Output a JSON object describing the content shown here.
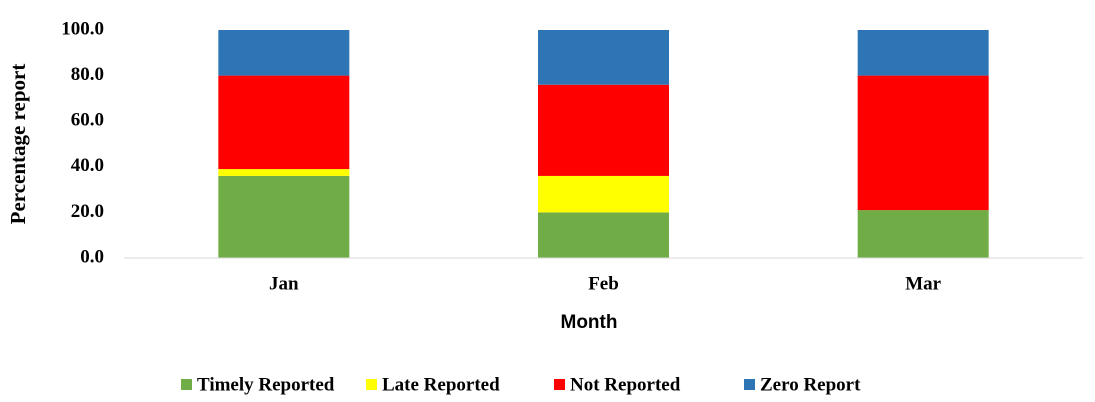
{
  "chart_data": {
    "type": "stacked_bar",
    "categories": [
      "Jan",
      "Feb",
      "Mar"
    ],
    "series": [
      {
        "name": "Timely Reported",
        "color": "#70ad47",
        "values": [
          36,
          20,
          21
        ]
      },
      {
        "name": "Late Reported",
        "color": "#ffff00",
        "values": [
          3,
          16,
          0
        ]
      },
      {
        "name": "Not Reported",
        "color": "#ff0000",
        "values": [
          41,
          40,
          59
        ]
      },
      {
        "name": "Zero Report",
        "color": "#2e75b6",
        "values": [
          20,
          24,
          20
        ]
      }
    ],
    "xlabel": "Month",
    "ylabel": "Percentage report",
    "ylim": [
      0,
      100
    ],
    "yticks": [
      {
        "value": 0,
        "label": "0.0"
      },
      {
        "value": 20,
        "label": "20.0"
      },
      {
        "value": 40,
        "label": "40.0"
      },
      {
        "value": 60,
        "label": "60.0"
      },
      {
        "value": 80,
        "label": "80.0"
      },
      {
        "value": 100,
        "label": "100.0"
      }
    ],
    "legend": "bottom"
  }
}
